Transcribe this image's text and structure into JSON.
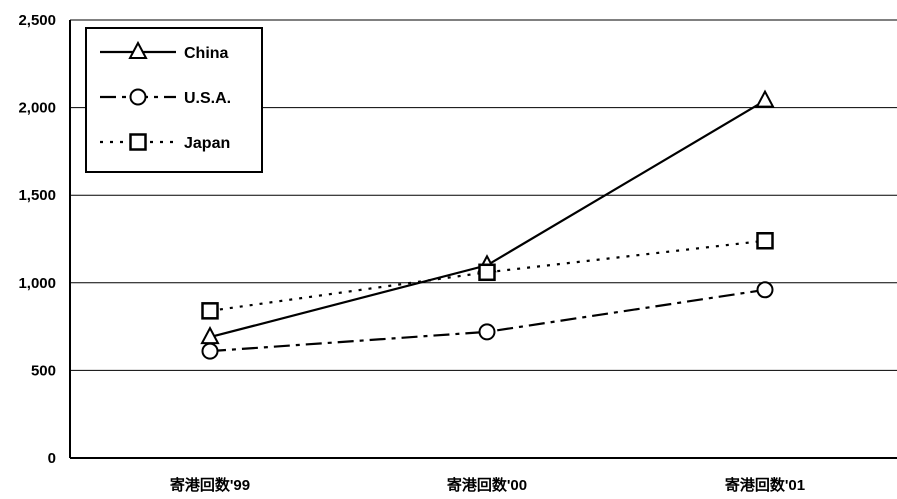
{
  "chart_data": {
    "type": "line",
    "categories": [
      "寄港回数'99",
      "寄港回数'00",
      "寄港回数'01"
    ],
    "series": [
      {
        "name": "China",
        "values": [
          690,
          1100,
          2040
        ],
        "marker": "triangle",
        "line": "solid"
      },
      {
        "name": "U.S.A.",
        "values": [
          610,
          720,
          960
        ],
        "marker": "circle",
        "line": "dash-dot"
      },
      {
        "name": "Japan",
        "values": [
          840,
          1060,
          1240
        ],
        "marker": "square",
        "line": "dotted"
      }
    ],
    "y_ticks": [
      "0",
      "500",
      "1,000",
      "1,500",
      "2,000",
      "2,500"
    ],
    "ylim": [
      0,
      2500
    ],
    "grid": "horizontal",
    "legend_position": "top-left",
    "colors": {
      "line": "#000000",
      "grid": "#000000",
      "background": "#ffffff"
    }
  }
}
